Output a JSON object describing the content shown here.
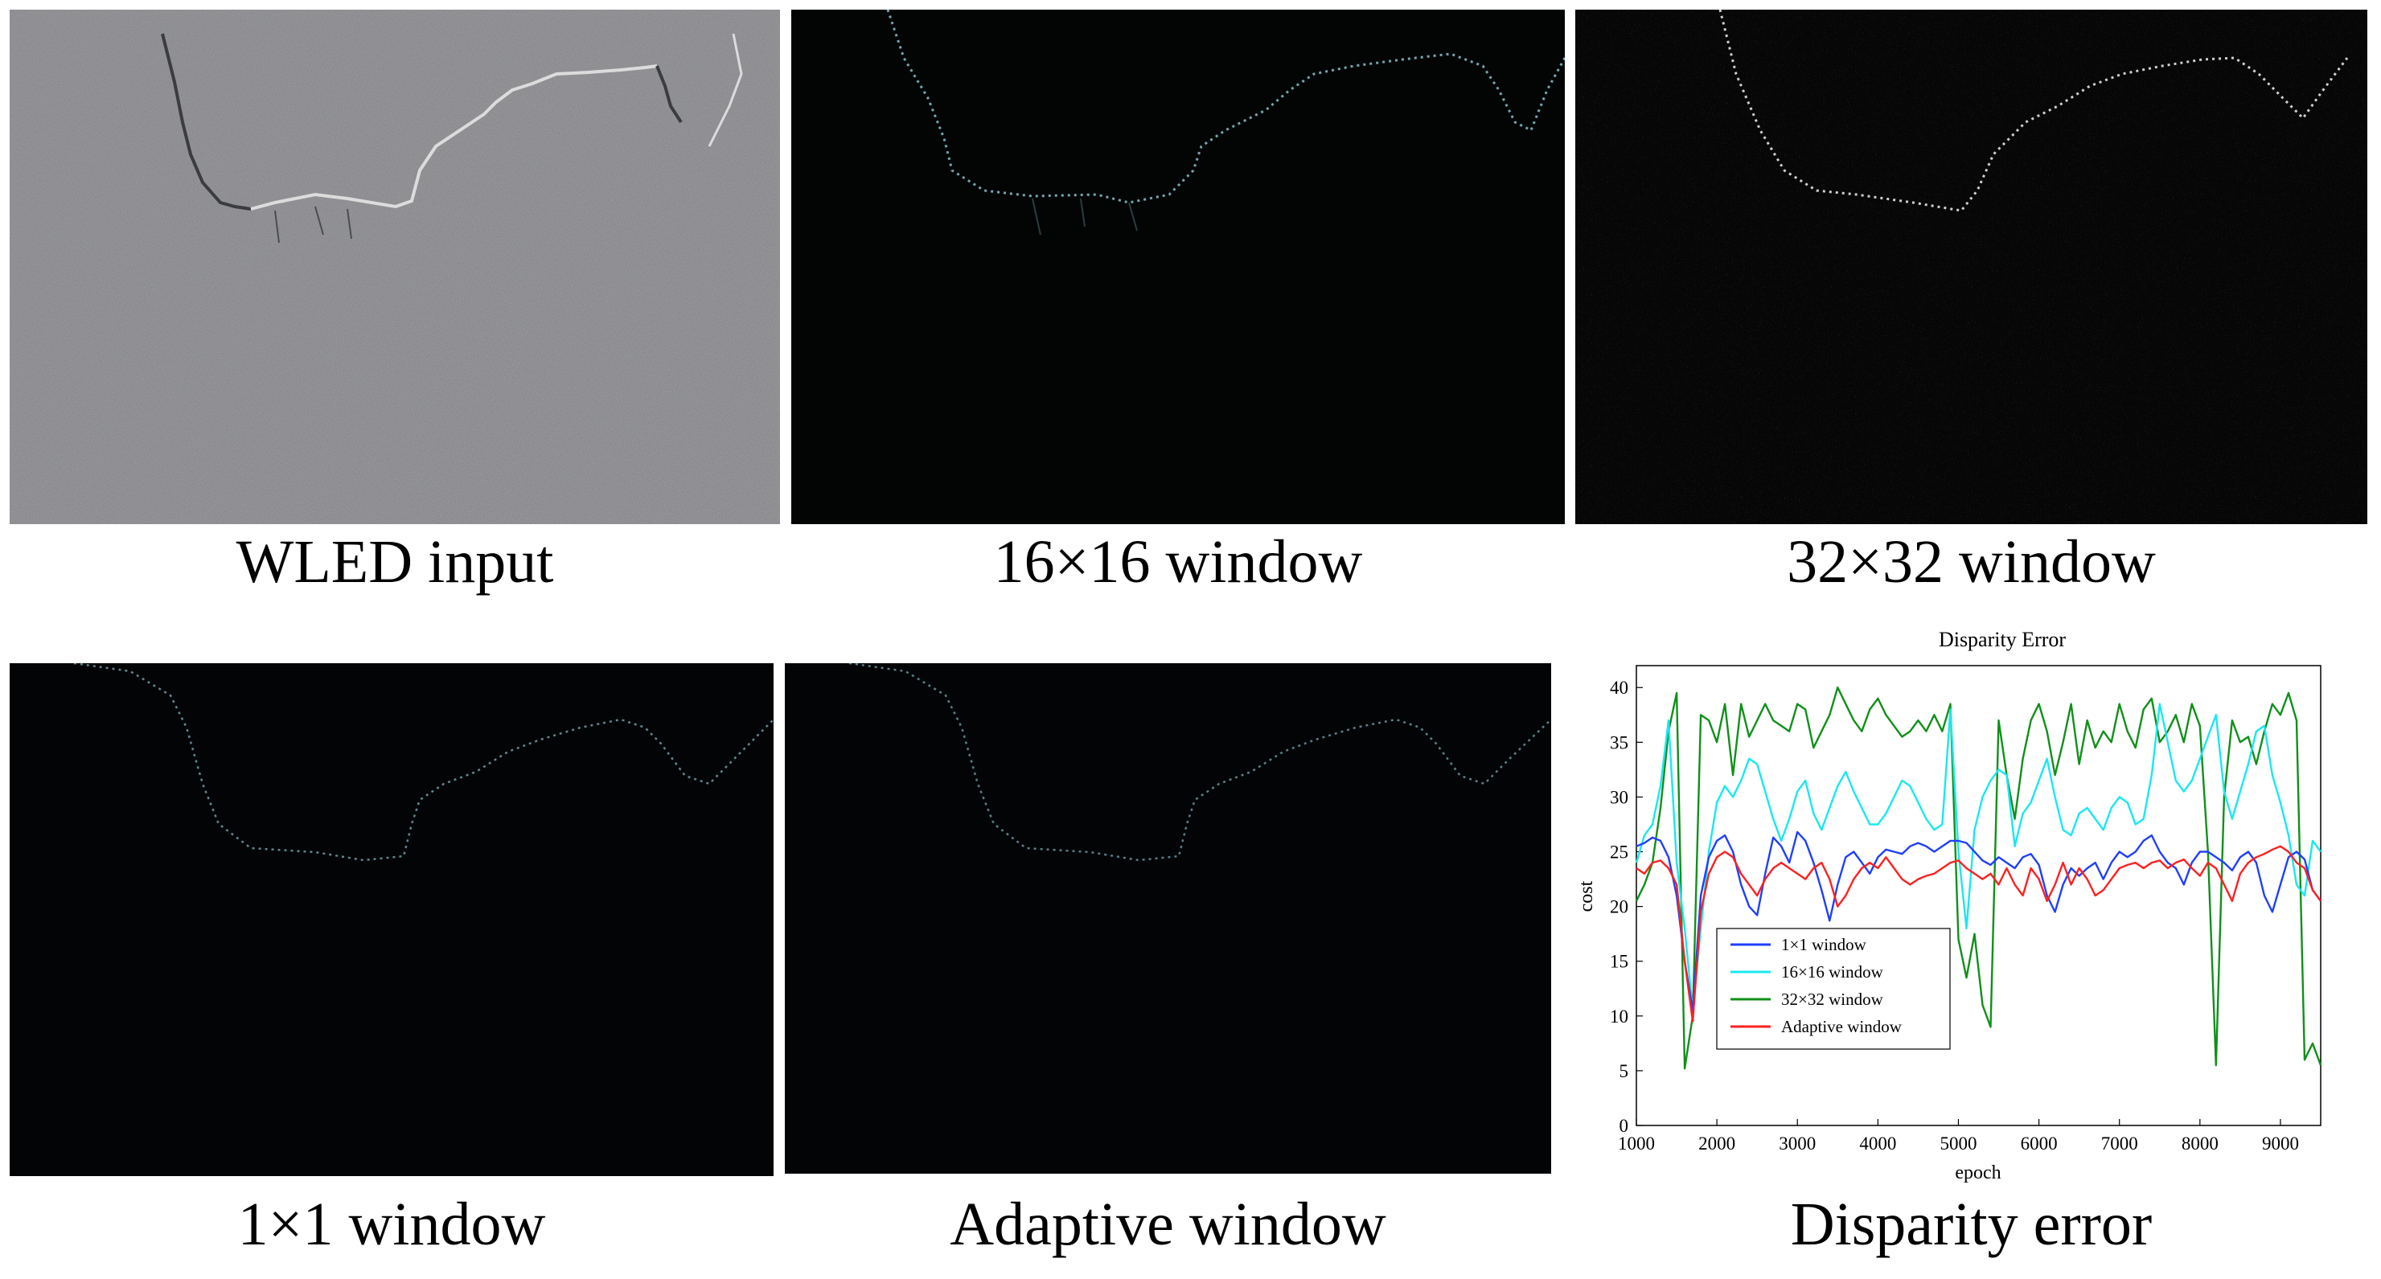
{
  "panels": {
    "wled": {
      "caption": "WLED input"
    },
    "w16": {
      "caption": "16×16 window"
    },
    "w32": {
      "caption": "32×32 window"
    },
    "w1": {
      "caption": "1×1 window"
    },
    "adaptive": {
      "caption": "Adaptive window"
    },
    "error": {
      "caption": "Disparity error"
    }
  },
  "colors": {
    "w1": "#1f3fff",
    "w16": "#19e8f0",
    "w32": "#10901a",
    "adaptive": "#ff2020"
  },
  "chart_data": {
    "type": "line",
    "title": "Disparity Error",
    "xlabel": "epoch",
    "ylabel": "cost",
    "xlim": [
      1000,
      9500
    ],
    "ylim": [
      0,
      42
    ],
    "xticks": [
      1000,
      2000,
      3000,
      4000,
      5000,
      6000,
      7000,
      8000,
      9000
    ],
    "yticks": [
      0,
      5,
      10,
      15,
      20,
      25,
      30,
      35,
      40
    ],
    "legend_position": "lower-left",
    "x": [
      1000,
      1100,
      1200,
      1300,
      1400,
      1500,
      1600,
      1700,
      1800,
      1900,
      2000,
      2100,
      2200,
      2300,
      2400,
      2500,
      2600,
      2700,
      2800,
      2900,
      3000,
      3100,
      3200,
      3300,
      3400,
      3500,
      3600,
      3700,
      3800,
      3900,
      4000,
      4100,
      4200,
      4300,
      4400,
      4500,
      4600,
      4700,
      4800,
      4900,
      5000,
      5100,
      5200,
      5300,
      5400,
      5500,
      5600,
      5700,
      5800,
      5900,
      6000,
      6100,
      6200,
      6300,
      6400,
      6500,
      6600,
      6700,
      6800,
      6900,
      7000,
      7100,
      7200,
      7300,
      7400,
      7500,
      7600,
      7700,
      7800,
      7900,
      8000,
      8100,
      8200,
      8300,
      8400,
      8500,
      8600,
      8700,
      8800,
      8900,
      9000,
      9100,
      9200,
      9300,
      9400,
      9500
    ],
    "series": [
      {
        "name": "1×1 window",
        "color_key": "w1",
        "values": [
          25.5,
          25.8,
          26.3,
          26.0,
          24.5,
          21.0,
          15.0,
          10.5,
          21.0,
          24.5,
          26.0,
          26.5,
          25.0,
          22.0,
          20.0,
          19.2,
          23.0,
          26.3,
          25.5,
          24.0,
          26.8,
          26.0,
          24.0,
          21.5,
          18.7,
          22.0,
          24.5,
          25.0,
          24.0,
          23.0,
          24.5,
          25.2,
          25.0,
          24.8,
          25.5,
          25.8,
          25.5,
          25.0,
          25.5,
          26.0,
          26.0,
          25.8,
          25.0,
          24.2,
          23.8,
          24.5,
          24.0,
          23.5,
          24.5,
          24.8,
          23.8,
          21.0,
          19.5,
          22.0,
          23.5,
          22.8,
          23.5,
          24.0,
          22.5,
          24.0,
          25.0,
          24.5,
          25.0,
          26.0,
          26.5,
          25.0,
          24.0,
          23.5,
          22.0,
          24.0,
          25.0,
          25.0,
          24.5,
          24.0,
          23.3,
          24.5,
          25.0,
          24.0,
          21.0,
          19.5,
          22.0,
          24.5,
          25.0,
          24.3,
          21.5,
          20.5
        ]
      },
      {
        "name": "16×16 window",
        "color_key": "w16",
        "values": [
          24.0,
          26.5,
          27.5,
          31.0,
          37.0,
          24.0,
          18.0,
          10.5,
          18.0,
          25.0,
          29.5,
          31.0,
          30.0,
          31.5,
          33.5,
          33.0,
          30.5,
          28.0,
          26.0,
          28.0,
          30.5,
          31.5,
          28.5,
          27.0,
          29.0,
          31.0,
          32.3,
          30.5,
          29.0,
          27.5,
          27.5,
          28.5,
          30.0,
          31.5,
          31.0,
          29.5,
          28.0,
          27.0,
          27.5,
          38.0,
          25.0,
          18.0,
          27.0,
          30.0,
          31.5,
          32.5,
          32.0,
          25.5,
          28.5,
          29.5,
          31.5,
          33.5,
          30.0,
          27.0,
          26.5,
          28.5,
          29.0,
          28.0,
          27.0,
          29.0,
          30.0,
          29.5,
          27.5,
          28.0,
          32.0,
          38.5,
          35.0,
          31.5,
          30.5,
          31.5,
          33.5,
          35.5,
          37.5,
          30.5,
          28.0,
          30.5,
          33.0,
          36.0,
          36.5,
          32.0,
          29.5,
          26.5,
          22.0,
          21.0,
          26.0,
          25.0
        ]
      },
      {
        "name": "32×32 window",
        "color_key": "w32",
        "values": [
          20.5,
          22.0,
          24.0,
          29.0,
          36.0,
          39.5,
          5.2,
          10.0,
          37.5,
          37.0,
          35.0,
          38.5,
          32.0,
          38.5,
          35.5,
          37.0,
          38.5,
          37.0,
          36.5,
          36.0,
          38.5,
          38.0,
          34.5,
          36.0,
          37.5,
          40.0,
          38.5,
          37.0,
          36.0,
          38.0,
          39.0,
          37.5,
          36.5,
          35.5,
          36.0,
          37.0,
          36.0,
          37.5,
          36.0,
          38.5,
          17.0,
          13.5,
          17.5,
          11.0,
          9.0,
          37.0,
          32.0,
          28.0,
          33.5,
          37.0,
          38.5,
          36.0,
          32.0,
          35.0,
          38.5,
          33.0,
          37.0,
          34.5,
          36.0,
          35.0,
          38.5,
          36.0,
          34.5,
          38.0,
          39.0,
          35.0,
          36.0,
          37.5,
          35.0,
          38.5,
          36.5,
          25.0,
          5.5,
          30.0,
          37.0,
          35.0,
          35.5,
          33.0,
          36.0,
          38.5,
          37.5,
          39.5,
          37.0,
          6.0,
          7.5,
          5.5
        ]
      },
      {
        "name": "Adaptive window",
        "color_key": "adaptive",
        "values": [
          23.5,
          23.0,
          24.0,
          24.2,
          23.5,
          22.0,
          15.0,
          9.5,
          19.5,
          23.0,
          24.5,
          25.0,
          24.5,
          23.0,
          22.0,
          21.0,
          22.5,
          23.5,
          24.0,
          23.5,
          23.0,
          22.5,
          23.5,
          24.0,
          22.5,
          20.0,
          21.0,
          22.5,
          23.5,
          24.0,
          23.5,
          24.5,
          23.5,
          22.5,
          22.0,
          22.5,
          22.8,
          23.0,
          23.5,
          24.0,
          24.2,
          23.5,
          23.0,
          22.5,
          23.0,
          22.0,
          23.5,
          22.0,
          21.0,
          23.5,
          22.5,
          20.5,
          22.0,
          24.0,
          22.0,
          23.5,
          22.5,
          21.0,
          21.5,
          22.5,
          23.5,
          23.8,
          24.0,
          23.5,
          24.0,
          24.2,
          23.5,
          24.0,
          24.3,
          23.5,
          22.8,
          24.0,
          23.5,
          22.0,
          20.5,
          23.0,
          24.0,
          24.5,
          24.8,
          25.2,
          25.5,
          25.0,
          24.0,
          23.5,
          21.5,
          20.5
        ]
      }
    ]
  }
}
